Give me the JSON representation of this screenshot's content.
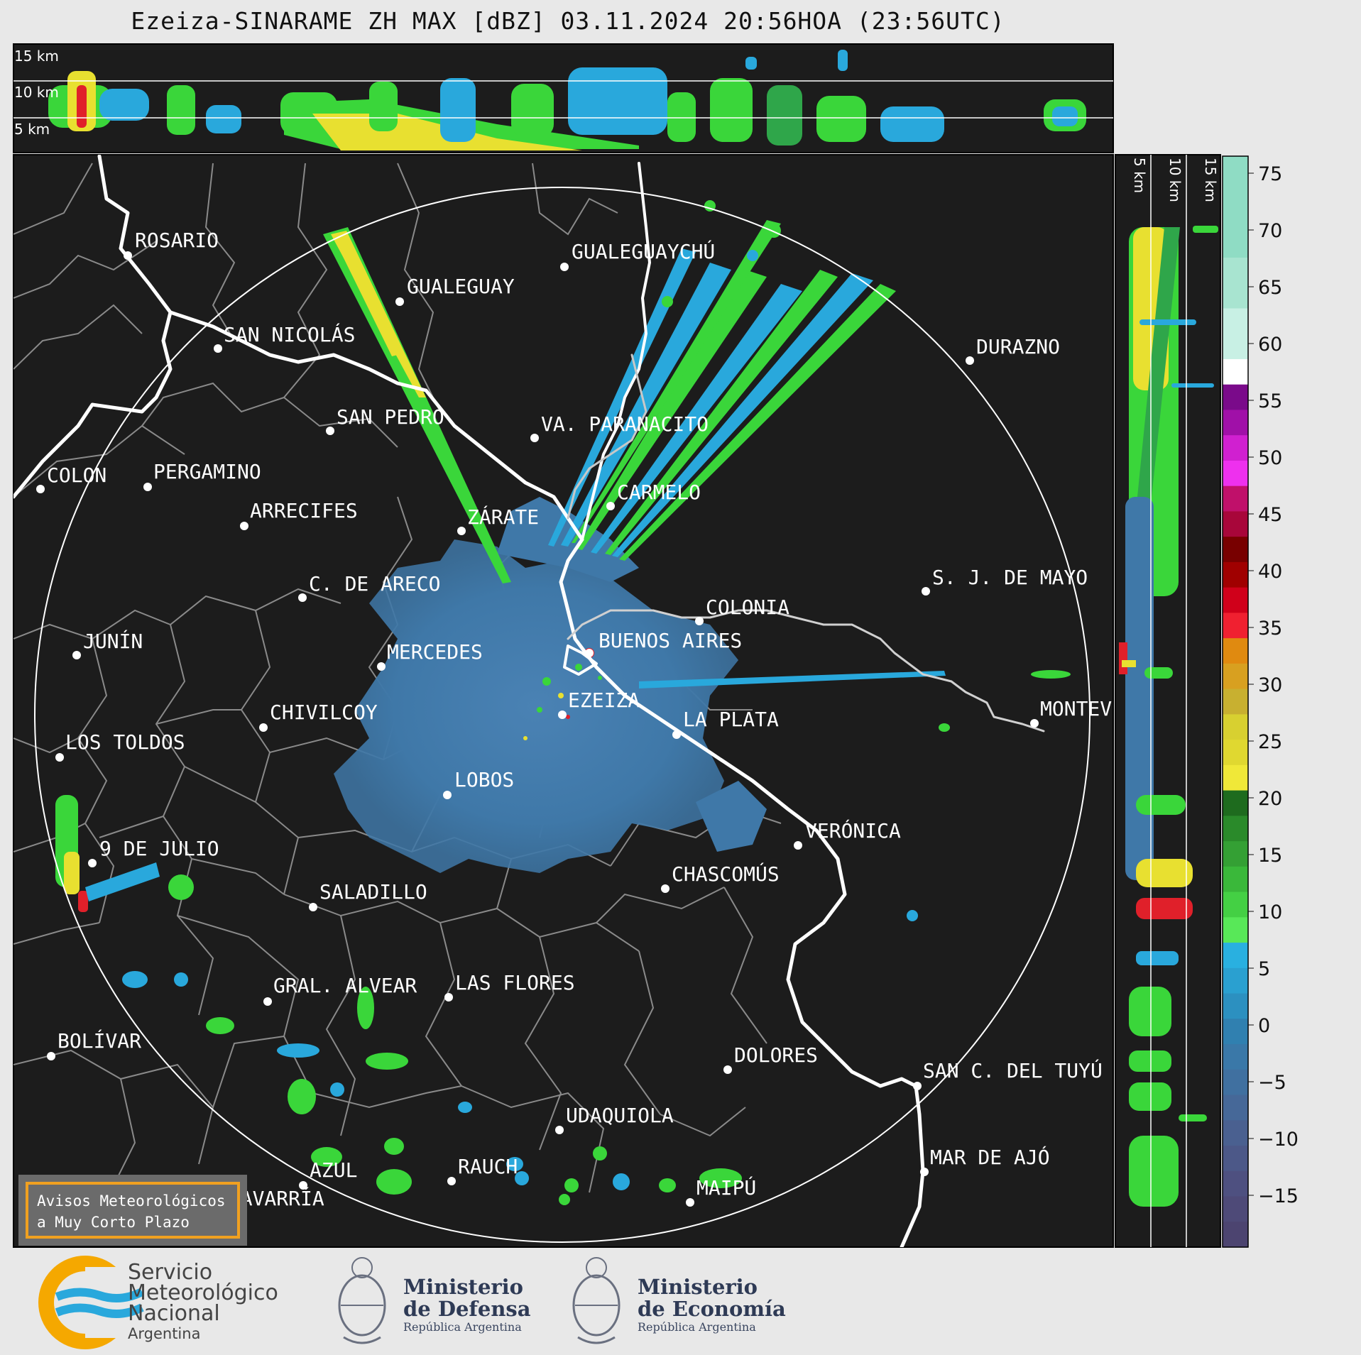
{
  "title": "Ezeiza-SINARAME ZH MAX [dBZ] 03.11.2024 20:56HOA (23:56UTC)",
  "top_panel": {
    "height_labels": [
      "15 km",
      "10 km",
      "5 km"
    ]
  },
  "side_panel": {
    "height_labels": [
      "5 km",
      "10 km",
      "15 km"
    ]
  },
  "colorbar": {
    "ticks": [
      "75",
      "70",
      "65",
      "60",
      "55",
      "50",
      "45",
      "40",
      "35",
      "30",
      "25",
      "20",
      "15",
      "10",
      "5",
      "0",
      "−5",
      "−10",
      "−15"
    ]
  },
  "cities": [
    {
      "name": "ROSARIO"
    },
    {
      "name": "GUALEGUAYCHÚ"
    },
    {
      "name": "GUALEGUAY"
    },
    {
      "name": "SAN NICOLÁS"
    },
    {
      "name": "DURAZNO"
    },
    {
      "name": "SAN PEDRO"
    },
    {
      "name": "VA. PARANACITO"
    },
    {
      "name": "COLON"
    },
    {
      "name": "PERGAMINO"
    },
    {
      "name": "CARMELO"
    },
    {
      "name": "ARRECIFES"
    },
    {
      "name": "ZÁRATE"
    },
    {
      "name": "S. J. DE MAYO"
    },
    {
      "name": "C. DE ARECO"
    },
    {
      "name": "COLONIA"
    },
    {
      "name": "JUNÍN"
    },
    {
      "name": "BUENOS AIRES"
    },
    {
      "name": "MERCEDES"
    },
    {
      "name": "EZEIZA"
    },
    {
      "name": "MONTEV"
    },
    {
      "name": "CHIVILCOY"
    },
    {
      "name": "LA PLATA"
    },
    {
      "name": "LOS TOLDOS"
    },
    {
      "name": "LOBOS"
    },
    {
      "name": "VERÓNICA"
    },
    {
      "name": "9 DE JULIO"
    },
    {
      "name": "CHASCOMÚS"
    },
    {
      "name": "SALADILLO"
    },
    {
      "name": "GRAL. ALVEAR"
    },
    {
      "name": "LAS FLORES"
    },
    {
      "name": "BOLÍVAR"
    },
    {
      "name": "DOLORES"
    },
    {
      "name": "SAN C. DEL TUYÚ"
    },
    {
      "name": "UDAQUIOLA"
    },
    {
      "name": "MAR DE AJÓ"
    },
    {
      "name": "AZUL"
    },
    {
      "name": "RAUCH"
    },
    {
      "name": "OLAVARRÍA"
    },
    {
      "name": "MAIPÚ"
    }
  ],
  "alert_box": {
    "line1": "Avisos Meteorológicos",
    "line2": "a Muy Corto Plazo"
  },
  "footer": {
    "smn_line1": "Servicio",
    "smn_line2": "Meteorológico",
    "smn_line3": "Nacional",
    "smn_line4": "Argentina",
    "defensa_line1": "Ministerio",
    "defensa_line2": "de Defensa",
    "defensa_sub": "República Argentina",
    "economia_line1": "Ministerio",
    "economia_line2": "de Economía",
    "economia_sub": "República Argentina"
  },
  "colors": {
    "panel_bg": "#1c1c1c",
    "echo_base": "#3f78a8",
    "echo_cyan": "#29a8dc",
    "echo_green": "#3ad63a",
    "echo_yellow": "#e8e030",
    "echo_red": "#e0202a",
    "river": "#ffffff",
    "border": "#8a8a8a"
  }
}
